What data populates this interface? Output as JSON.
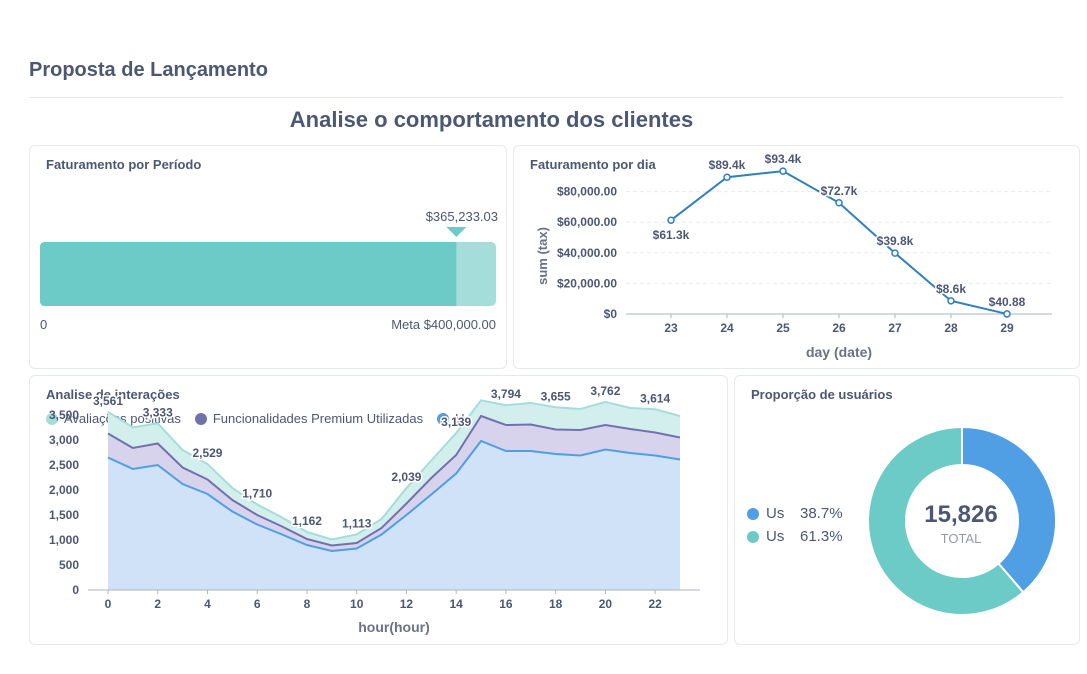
{
  "page": {
    "title": "Proposta de Lançamento",
    "heading": "Analise o comportamento dos clientes"
  },
  "colors": {
    "teal": "#6ccbc7",
    "teal_light": "#a5ddda",
    "purple": "#7172ad",
    "blue": "#509ee3",
    "text": "#4c5773"
  },
  "progress": {
    "title": "Faturamento por Período",
    "value_label": "$365,233.03",
    "start_label": "0",
    "goal_label": "Meta $400,000.00",
    "chart_data": {
      "type": "progress",
      "value": 365233.03,
      "goal": 400000
    }
  },
  "line_card": {
    "title": "Faturamento por dia",
    "chart_data": {
      "type": "line",
      "x": [
        23,
        24,
        25,
        26,
        27,
        28,
        29
      ],
      "values": [
        61300,
        89400,
        93400,
        72700,
        39800,
        8600,
        40.88
      ],
      "data_labels": [
        "$61.3k",
        "$89.4k",
        "$93.4k",
        "$72.7k",
        "$39.8k",
        "$8.6k",
        "$40.88"
      ],
      "xlabel": "day (date)",
      "ylabel": "sum (tax)",
      "y_ticks": [
        0,
        20000,
        40000,
        60000,
        80000
      ],
      "y_tick_labels": [
        "$0",
        "$20,000.00",
        "$40,000.00",
        "$60,000.00",
        "$80,000.00"
      ],
      "ylim": [
        0,
        100000
      ],
      "grid": true
    }
  },
  "area_card": {
    "title": "Analise de interações",
    "legend": [
      "Avaliações positivas",
      "Funcionalidades Premium Utilizadas",
      "Usuários Logados"
    ],
    "chart_data": {
      "type": "area",
      "x": [
        0,
        1,
        2,
        3,
        4,
        5,
        6,
        7,
        8,
        9,
        10,
        11,
        12,
        13,
        14,
        15,
        16,
        17,
        18,
        19,
        20,
        21,
        22,
        23
      ],
      "xlabel": "hour(hour)",
      "x_ticks": [
        0,
        2,
        4,
        6,
        8,
        10,
        12,
        14,
        16,
        18,
        20,
        22
      ],
      "y_ticks": [
        0,
        500,
        1000,
        1500,
        2000,
        2500,
        3000,
        3500
      ],
      "y_tick_labels": [
        "0",
        "500",
        "1,000",
        "1,500",
        "2,000",
        "2,500",
        "3,000",
        "3,500"
      ],
      "ylim": [
        0,
        4000
      ],
      "grid": false,
      "stacked": true,
      "series": [
        {
          "name": "Usuários Logados",
          "color": "#509ee3",
          "values": [
            2650,
            2420,
            2500,
            2120,
            1920,
            1570,
            1310,
            1110,
            900,
            780,
            830,
            1110,
            1500,
            1910,
            2330,
            2980,
            2780,
            2780,
            2720,
            2690,
            2810,
            2740,
            2690,
            2610
          ]
        },
        {
          "name": "Funcionalidades Premium Utilizadas",
          "color": "#7172ad",
          "values": [
            480,
            420,
            430,
            330,
            290,
            230,
            190,
            160,
            120,
            110,
            110,
            130,
            230,
            330,
            370,
            500,
            520,
            530,
            490,
            510,
            490,
            480,
            460,
            440
          ]
        },
        {
          "name": "Avaliações positivas",
          "color": "#6ccbc7",
          "values": [
            431,
            413,
            403,
            349,
            310,
            240,
            210,
            180,
            142,
            120,
            173,
            180,
            309,
            350,
            439,
            314,
            396,
            431,
            445,
            421,
            462,
            421,
            464,
            430
          ]
        }
      ],
      "total_labels": [
        {
          "x": 0,
          "text": "3,561"
        },
        {
          "x": 2,
          "text": "3,333"
        },
        {
          "x": 4,
          "text": "2,529"
        },
        {
          "x": 6,
          "text": "1,710"
        },
        {
          "x": 8,
          "text": "1,162"
        },
        {
          "x": 10,
          "text": "1,113"
        },
        {
          "x": 12,
          "text": "2,039"
        },
        {
          "x": 14,
          "text": "3,139"
        },
        {
          "x": 16,
          "text": "3,794"
        },
        {
          "x": 18,
          "text": "3,655"
        },
        {
          "x": 20,
          "text": "3,762"
        },
        {
          "x": 22,
          "text": "3,614"
        }
      ]
    }
  },
  "donut_card": {
    "title": "Proporção de usuários",
    "total_value": "15,826",
    "total_label": "TOTAL",
    "chart_data": {
      "type": "pie",
      "total": 15826,
      "slices": [
        {
          "name": "Us",
          "percent_label": "38.7%",
          "value": 38.7,
          "color": "#509ee3"
        },
        {
          "name": "Us",
          "percent_label": "61.3%",
          "value": 61.3,
          "color": "#6ccbc7"
        }
      ]
    }
  }
}
